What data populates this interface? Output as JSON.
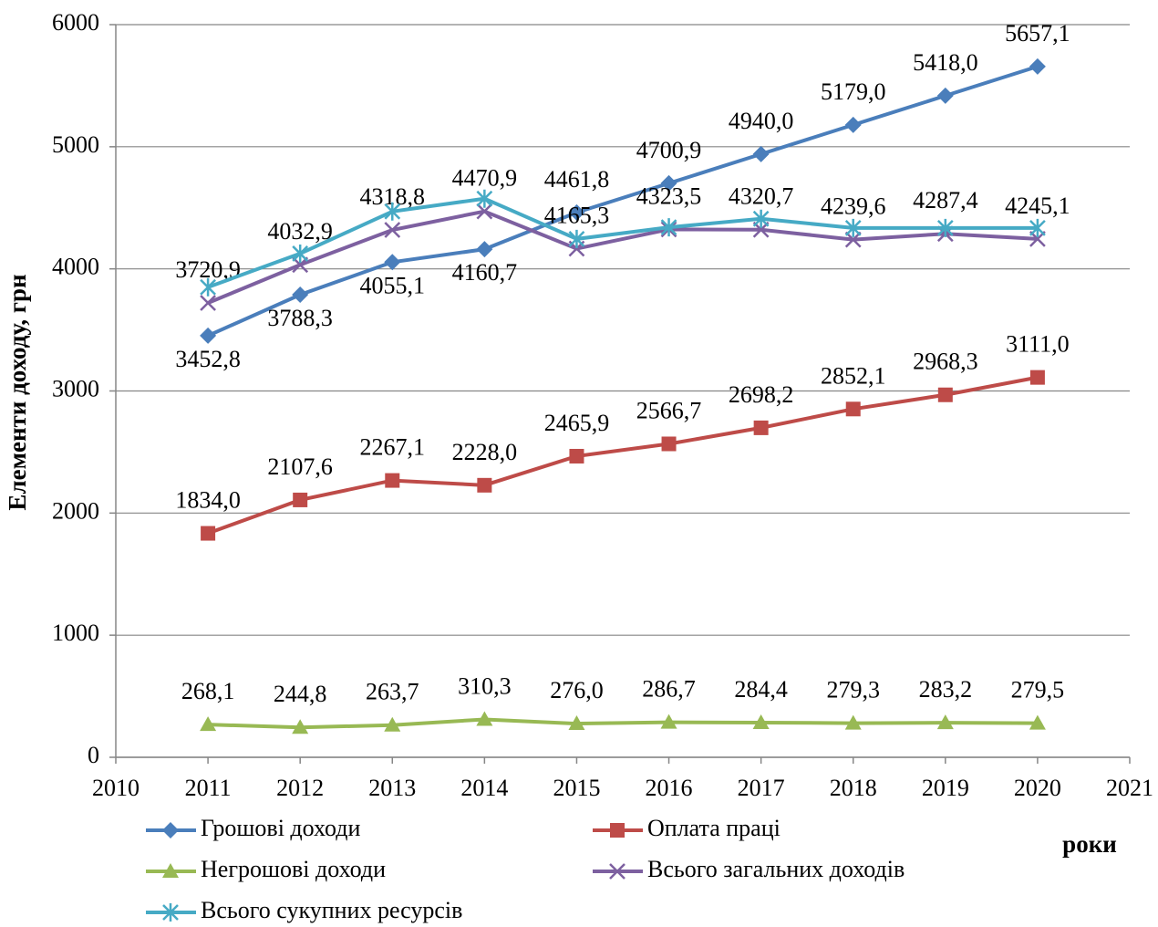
{
  "chart_data": {
    "type": "line",
    "y_label": "Елементи доходу, грн",
    "x_label": "роки",
    "xlim": [
      2010,
      2021
    ],
    "xticks": [
      2010,
      2011,
      2012,
      2013,
      2014,
      2015,
      2016,
      2017,
      2018,
      2019,
      2020,
      2021
    ],
    "ylim": [
      0,
      6000
    ],
    "yticks": [
      0,
      1000,
      2000,
      3000,
      4000,
      5000,
      6000
    ],
    "grid": true,
    "legend": "bottom",
    "x": [
      2011,
      2012,
      2013,
      2014,
      2015,
      2016,
      2017,
      2018,
      2019,
      2020
    ],
    "series": [
      {
        "name": "Грошові доходи",
        "color": "#4a7ebb",
        "marker": "diamond",
        "values": [
          3452.8,
          3788.3,
          4055.1,
          4160.7,
          4461.8,
          4700.9,
          4940.0,
          5179.0,
          5418.0,
          5657.1
        ],
        "value_labels": [
          "3452,8",
          "3788,3",
          "4055,1",
          "4160,7",
          "4461,8",
          "4700,9",
          "4940,0",
          "5179,0",
          "5418,0",
          "5657,1"
        ]
      },
      {
        "name": "Оплата праці",
        "color": "#be4b48",
        "marker": "square",
        "values": [
          1834.0,
          2107.6,
          2267.1,
          2228.0,
          2465.9,
          2566.7,
          2698.2,
          2852.1,
          2968.3,
          3111.0
        ],
        "value_labels": [
          "1834,0",
          "2107,6",
          "2267,1",
          "2228,0",
          "2465,9",
          "2566,7",
          "2698,2",
          "2852,1",
          "2968,3",
          "3111,0"
        ]
      },
      {
        "name": "Негрошові доходи",
        "color": "#98b954",
        "marker": "triangle",
        "values": [
          268.1,
          244.8,
          263.7,
          310.3,
          276.0,
          286.7,
          284.4,
          279.3,
          283.2,
          279.5
        ],
        "value_labels": [
          "268,1",
          "244,8",
          "263,7",
          "310,3",
          "276,0",
          "286,7",
          "284,4",
          "279,3",
          "283,2",
          "279,5"
        ]
      },
      {
        "name": "Всього загальних доходів",
        "color": "#7d60a0",
        "marker": "x",
        "values": [
          3720.9,
          4032.9,
          4318.8,
          4470.9,
          4165.3,
          4323.5,
          4320.7,
          4239.6,
          4287.4,
          4245.1
        ],
        "value_labels": [
          "3720,9",
          "4032,9",
          "4318,8",
          "4470,9",
          "4165,3",
          "4323,5",
          "4320,7",
          "4239,6",
          "4287,4",
          "4245,1"
        ]
      },
      {
        "name": "Всього сукупних ресурсів",
        "color": "#46aac5",
        "marker": "star",
        "values": [
          3850,
          4125,
          4470,
          4575,
          4245,
          4340,
          4410,
          4335,
          4335,
          4335
        ]
      }
    ]
  }
}
